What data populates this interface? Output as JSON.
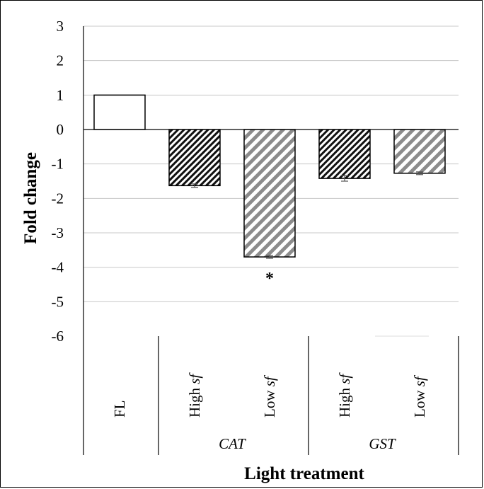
{
  "chart_data": {
    "type": "bar",
    "ylabel": "Fold change",
    "xlabel": "Light treatment",
    "ylim": [
      -6,
      3
    ],
    "yticks": [
      3,
      2,
      1,
      0,
      -1,
      -2,
      -3,
      -4,
      -5,
      -6
    ],
    "grid": true,
    "bars": [
      {
        "label": "FL",
        "label_italic": "",
        "value": 1.0,
        "error": 0.0,
        "pattern": "open",
        "sig": ""
      },
      {
        "label": "High ",
        "label_italic": "sf",
        "value": -1.63,
        "error": 0.05,
        "pattern": "dense-hatch",
        "sig": ""
      },
      {
        "label": "Low ",
        "label_italic": "sf",
        "value": -3.7,
        "error": 0.04,
        "pattern": "wide-hatch",
        "sig": "*"
      },
      {
        "label": "High ",
        "label_italic": "sf",
        "value": -1.42,
        "error": 0.08,
        "pattern": "dense-hatch",
        "sig": ""
      },
      {
        "label": "Low ",
        "label_italic": "sf",
        "value": -1.27,
        "error": 0.04,
        "pattern": "wide-hatch",
        "sig": ""
      }
    ],
    "groups": [
      {
        "name": "CAT",
        "bar_indices": [
          1,
          2
        ]
      },
      {
        "name": "GST",
        "bar_indices": [
          3,
          4
        ]
      }
    ]
  }
}
